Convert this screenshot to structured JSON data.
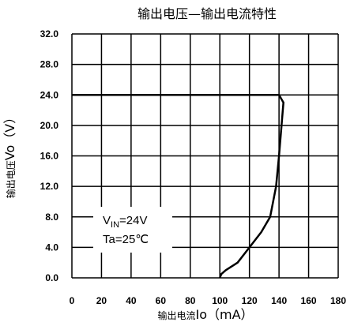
{
  "chart_data": {
    "type": "line",
    "title": "输出电压—输出电流特性",
    "xlabel_prefix": "输出电流",
    "xlabel_main": "Io（mA）",
    "ylabel_prefix": "输出电压",
    "ylabel_main": "Vo（V）",
    "xlim": [
      0,
      180
    ],
    "ylim": [
      0,
      32
    ],
    "x_ticks": [
      "0",
      "20",
      "40",
      "60",
      "80",
      "100",
      "120",
      "140",
      "160",
      "180"
    ],
    "y_ticks": [
      "0.0",
      "4.0",
      "8.0",
      "12.0",
      "16.0",
      "20.0",
      "24.0",
      "28.0",
      "32.0"
    ],
    "grid": true,
    "series": [
      {
        "x": [
          0,
          140,
          143,
          140,
          138,
          134,
          128,
          120,
          112,
          104,
          101,
          100
        ],
        "y": [
          24,
          24,
          23,
          16,
          12,
          8,
          6,
          4,
          2,
          1,
          0.5,
          0
        ]
      }
    ],
    "annotation": {
      "vin_main": "V",
      "vin_sub": "IN",
      "vin_rest": "=24V",
      "ta": "Ta=25℃"
    }
  }
}
